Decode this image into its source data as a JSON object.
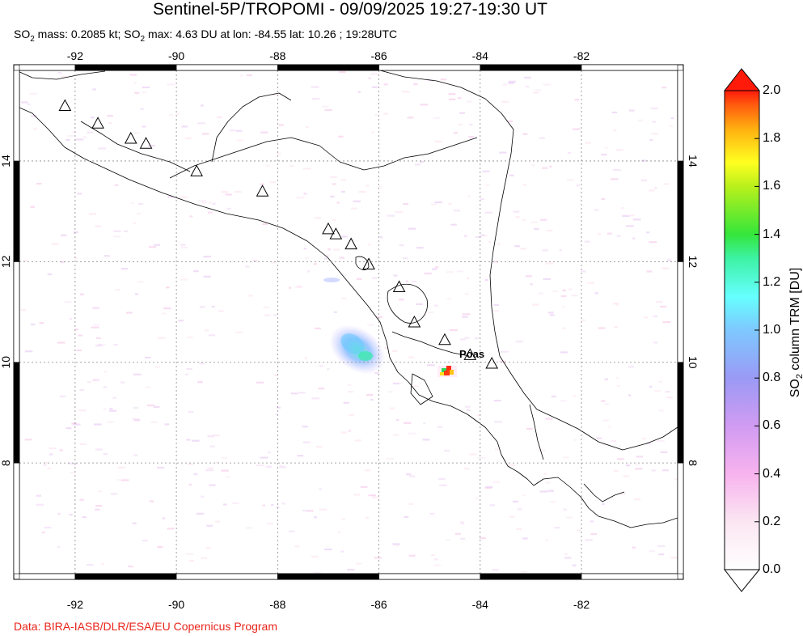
{
  "header": {
    "title": "Sentinel-5P/TROPOMI - 09/09/2025 19:27-19:30 UT",
    "subtitle_a": "SO",
    "subtitle_b": "2",
    "subtitle_c": " mass: 0.2085 kt; SO",
    "subtitle_d": "2",
    "subtitle_e": " max: 4.63 DU at lon: -84.55 lat: 10.26 ; 19:28UTC"
  },
  "footer": {
    "credit": "Data: BIRA-IASB/DLR/ESA/EU Copernicus Program"
  },
  "map": {
    "lon_range": [
      -93.1,
      -80.1
    ],
    "lat_range": [
      5.8,
      15.8
    ],
    "x_ticks": [
      {
        "value": -92,
        "label": "-92"
      },
      {
        "value": -90,
        "label": "-90"
      },
      {
        "value": -88,
        "label": "-88"
      },
      {
        "value": -86,
        "label": "-86"
      },
      {
        "value": -84,
        "label": "-84"
      },
      {
        "value": -82,
        "label": "-82"
      }
    ],
    "y_ticks": [
      {
        "value": 8,
        "label": "8"
      },
      {
        "value": 10,
        "label": "10"
      },
      {
        "value": 12,
        "label": "12"
      },
      {
        "value": 14,
        "label": "14"
      }
    ],
    "volcano_label": "Poas",
    "volcanoes": [
      {
        "lon": -92.2,
        "lat": 15.1
      },
      {
        "lon": -91.55,
        "lat": 14.75
      },
      {
        "lon": -90.9,
        "lat": 14.45
      },
      {
        "lon": -90.6,
        "lat": 14.35
      },
      {
        "lon": -89.6,
        "lat": 13.8
      },
      {
        "lon": -88.3,
        "lat": 13.4
      },
      {
        "lon": -87.0,
        "lat": 12.65
      },
      {
        "lon": -86.85,
        "lat": 12.55
      },
      {
        "lon": -86.55,
        "lat": 12.35
      },
      {
        "lon": -86.2,
        "lat": 11.95
      },
      {
        "lon": -85.6,
        "lat": 11.5
      },
      {
        "lon": -85.3,
        "lat": 10.8
      },
      {
        "lon": -84.7,
        "lat": 10.45
      },
      {
        "lon": -84.2,
        "lat": 10.15
      },
      {
        "lon": -83.77,
        "lat": 9.98
      }
    ],
    "so2_max_location": {
      "lon": -84.55,
      "lat": 10.26
    }
  },
  "colorbar": {
    "title_main": "SO",
    "title_sub": "2",
    "title_rest": " column TRM [DU]",
    "min": 0.0,
    "max": 2.0,
    "labels": [
      "0.0",
      "0.2",
      "0.4",
      "0.6",
      "0.8",
      "1.0",
      "1.2",
      "1.4",
      "1.6",
      "1.8",
      "2.0"
    ],
    "colors": [
      "#ffffff",
      "#fbe6f2",
      "#f7b3ee",
      "#d19bf2",
      "#9a9af5",
      "#7ec8ff",
      "#66ffff",
      "#3df2a4",
      "#34e63a",
      "#b9f01c",
      "#ffff20",
      "#ffb010",
      "#ff5c0e",
      "#ff1a0a"
    ]
  }
}
